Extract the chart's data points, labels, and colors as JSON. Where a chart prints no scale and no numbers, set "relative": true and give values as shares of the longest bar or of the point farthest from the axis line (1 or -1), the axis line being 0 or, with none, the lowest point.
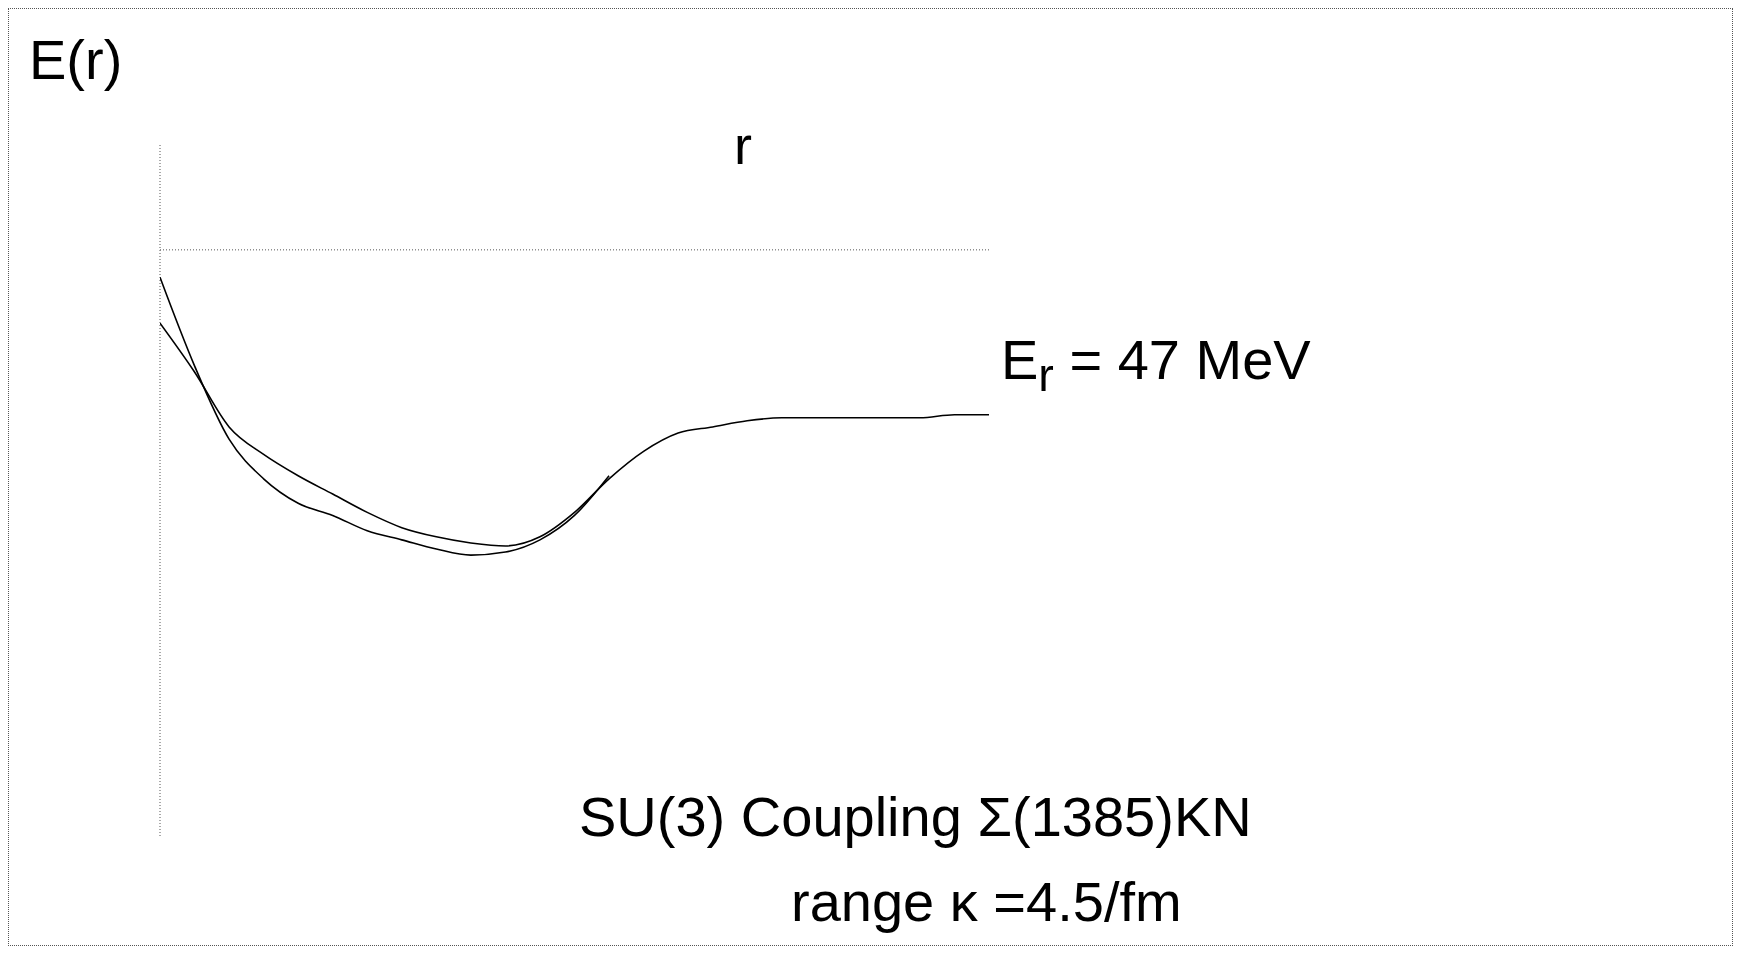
{
  "chart_data": {
    "type": "line",
    "relative": true,
    "ylabel": "E(r)",
    "xlabel": "r",
    "categories": [
      null,
      null,
      null,
      null,
      null,
      null,
      null,
      null,
      null,
      null,
      null,
      null,
      null,
      null,
      null,
      null,
      null,
      null,
      null,
      null,
      null,
      null,
      null,
      null,
      null
    ],
    "series": [
      {
        "color": "#000000",
        "values": [
          -0.24,
          -0.4,
          -0.58,
          -0.67,
          -0.74,
          -0.8,
          -0.86,
          -0.91,
          -0.94,
          -0.96,
          -0.97,
          -0.94,
          -0.86,
          -0.75,
          -0.66,
          -0.6,
          -0.58,
          -0.56,
          -0.55,
          -0.55,
          -0.55,
          -0.55,
          -0.55,
          -0.54,
          -0.54
        ]
      },
      {
        "color": "#000000",
        "values": [
          -0.09,
          -0.38,
          -0.62,
          -0.75,
          -0.83,
          -0.87,
          -0.92,
          -0.95,
          -0.98,
          -1,
          -0.99,
          -0.95,
          -0.87,
          -0.74,
          null,
          null,
          null,
          null,
          null,
          null,
          null,
          null,
          null,
          null,
          null
        ]
      }
    ],
    "annotations": [
      "E$_{r}$ = 47 MeV",
      "SU(3)  Coupling Σ(1385)KN",
      "range κ =4.5/fm"
    ],
    "legend": false,
    "grid": false,
    "marker": "none",
    "line_style": "solid"
  }
}
